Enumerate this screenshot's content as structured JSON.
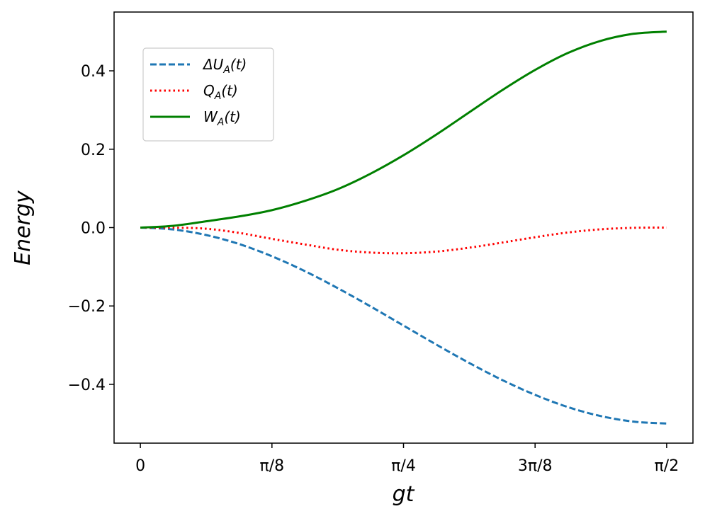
{
  "chart_data": {
    "type": "line",
    "xlabel": "gt",
    "ylabel": "Energy",
    "xlim": [
      -0.0785,
      1.6493
    ],
    "ylim": [
      -0.55,
      0.55
    ],
    "xticks": [
      {
        "value": 0,
        "label": "0"
      },
      {
        "value": 0.3927,
        "label": "π/8"
      },
      {
        "value": 0.7854,
        "label": "π/4"
      },
      {
        "value": 1.1781,
        "label": "3π/8"
      },
      {
        "value": 1.5708,
        "label": "π/2"
      }
    ],
    "yticks": [
      {
        "value": -0.4,
        "label": "−0.4"
      },
      {
        "value": -0.2,
        "label": "−0.2"
      },
      {
        "value": 0.0,
        "label": "0.0"
      },
      {
        "value": 0.2,
        "label": "0.2"
      },
      {
        "value": 0.4,
        "label": "0.4"
      }
    ],
    "grid": false,
    "legend_position": "upper-left",
    "x": [
      0,
      0.0982,
      0.1963,
      0.2945,
      0.3927,
      0.4909,
      0.589,
      0.6872,
      0.7854,
      0.8836,
      0.9817,
      1.0799,
      1.1781,
      1.2763,
      1.3744,
      1.4726,
      1.5708
    ],
    "series": [
      {
        "name_main": "ΔU",
        "name_sub": "A",
        "name_tail": "(t)",
        "color": "#1f77b4",
        "style": "dashed",
        "values": [
          0,
          -0.0048,
          -0.019,
          -0.0419,
          -0.0732,
          -0.1111,
          -0.1545,
          -0.2013,
          -0.25,
          -0.2987,
          -0.3455,
          -0.3889,
          -0.4268,
          -0.4581,
          -0.481,
          -0.4952,
          -0.5
        ]
      },
      {
        "name_main": "Q",
        "name_sub": "A",
        "name_tail": "(t)",
        "color": "#ff0000",
        "style": "dotted",
        "values": [
          0,
          -0.0002,
          -0.0029,
          -0.0135,
          -0.0287,
          -0.043,
          -0.0565,
          -0.0637,
          -0.0655,
          -0.0612,
          -0.0513,
          -0.0383,
          -0.0246,
          -0.0125,
          -0.0044,
          -0.0006,
          0
        ]
      },
      {
        "name_main": "W",
        "name_sub": "A",
        "name_tail": "(t)",
        "color": "#008000",
        "style": "solid",
        "values": [
          0,
          0.0046,
          0.0161,
          0.0284,
          0.0445,
          0.0681,
          0.098,
          0.1376,
          0.1845,
          0.2375,
          0.2942,
          0.3506,
          0.4022,
          0.4456,
          0.4766,
          0.4946,
          0.5
        ]
      }
    ]
  }
}
